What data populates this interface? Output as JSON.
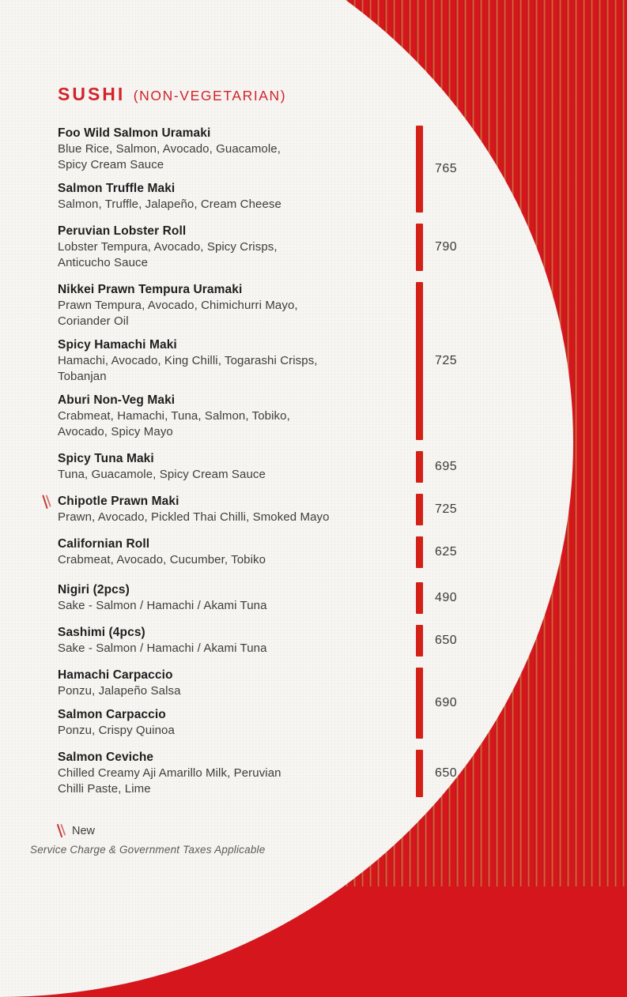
{
  "header": {
    "title": "SUSHI",
    "subtitle": "(NON-VEGETARIAN)"
  },
  "menu": {
    "groups": [
      {
        "price": "765",
        "items": [
          {
            "name": "Foo Wild Salmon Uramaki",
            "desc_lines": [
              "Blue Rice, Salmon, Avocado, Guacamole,",
              "Spicy Cream Sauce"
            ]
          },
          {
            "name": "Salmon Truffle Maki",
            "desc_lines": [
              "Salmon, Truffle, Jalapeño, Cream Cheese"
            ]
          }
        ]
      },
      {
        "price": "790",
        "items": [
          {
            "name": "Peruvian Lobster Roll",
            "desc_lines": [
              "Lobster Tempura, Avocado, Spicy Crisps,",
              "Anticucho Sauce"
            ]
          }
        ]
      },
      {
        "price": "725",
        "items": [
          {
            "name": "Nikkei Prawn Tempura Uramaki",
            "desc_lines": [
              "Prawn Tempura, Avocado, Chimichurri Mayo,",
              "Coriander Oil"
            ]
          },
          {
            "name": "Spicy Hamachi Maki",
            "desc_lines": [
              "Hamachi, Avocado, King Chilli, Togarashi Crisps,",
              "Tobanjan"
            ]
          },
          {
            "name": "Aburi Non-Veg Maki",
            "desc_lines": [
              "Crabmeat, Hamachi, Tuna, Salmon, Tobiko,",
              "Avocado, Spicy Mayo"
            ]
          }
        ]
      },
      {
        "price": "695",
        "items": [
          {
            "name": "Spicy Tuna Maki",
            "desc_lines": [
              "Tuna, Guacamole, Spicy Cream Sauce"
            ]
          }
        ]
      },
      {
        "price": "725",
        "items": [
          {
            "name": "Chipotle Prawn Maki",
            "new": true,
            "desc_lines": [
              "Prawn, Avocado, Pickled Thai Chilli, Smoked Mayo"
            ]
          }
        ]
      },
      {
        "price": "625",
        "items": [
          {
            "name": "Californian Roll",
            "desc_lines": [
              "Crabmeat, Avocado, Cucumber, Tobiko"
            ]
          }
        ]
      },
      {
        "price": "490",
        "section_start": true,
        "items": [
          {
            "name": "Nigiri (2pcs)",
            "desc_lines": [
              "Sake - Salmon / Hamachi / Akami Tuna"
            ]
          }
        ]
      },
      {
        "price": "650",
        "items": [
          {
            "name": "Sashimi (4pcs)",
            "desc_lines": [
              "Sake - Salmon / Hamachi / Akami Tuna"
            ]
          }
        ]
      },
      {
        "price": "690",
        "items": [
          {
            "name": "Hamachi Carpaccio",
            "desc_lines": [
              "Ponzu, Jalapeño Salsa"
            ]
          },
          {
            "name": "Salmon Carpaccio",
            "desc_lines": [
              "Ponzu, Crispy Quinoa"
            ]
          }
        ]
      },
      {
        "price": "650",
        "items": [
          {
            "name": "Salmon Ceviche",
            "desc_lines": [
              "Chilled Creamy Aji Amarillo Milk, Peruvian",
              "Chilli Paste, Lime"
            ]
          }
        ]
      }
    ]
  },
  "footer": {
    "new_label": "New",
    "disclaimer": "Service Charge & Government Taxes Applicable"
  },
  "colors": {
    "red_background": "#d5161d",
    "stripe_orange": "#cd6e3a",
    "price_bar_red": "#d32118",
    "title_red": "#d2232a",
    "paper": "#f7f6f3",
    "name_text": "#1e1e1e",
    "desc_text": "#3d3d3d",
    "price_text": "#3a3a3a"
  }
}
